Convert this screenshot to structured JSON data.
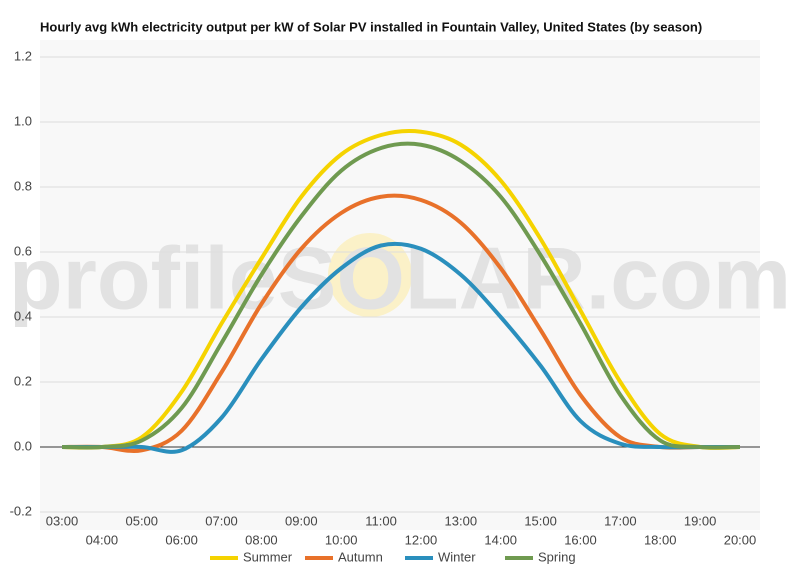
{
  "chart_data": {
    "type": "line",
    "title": "Hourly avg kWh electricity output per kW of Solar PV installed in Fountain Valley, United States (by season)",
    "watermark": "profileSOLAR.com",
    "categories": [
      "03:00",
      "04:00",
      "05:00",
      "06:00",
      "07:00",
      "08:00",
      "09:00",
      "10:00",
      "11:00",
      "12:00",
      "13:00",
      "14:00",
      "15:00",
      "16:00",
      "17:00",
      "18:00",
      "19:00",
      "20:00"
    ],
    "series": [
      {
        "name": "Summer",
        "color": "#f5d300",
        "values": [
          0,
          0,
          0.03,
          0.17,
          0.38,
          0.58,
          0.77,
          0.9,
          0.96,
          0.97,
          0.93,
          0.82,
          0.64,
          0.42,
          0.2,
          0.04,
          0,
          0
        ]
      },
      {
        "name": "Autumn",
        "color": "#e8712a",
        "values": [
          0,
          0,
          -0.01,
          0.05,
          0.23,
          0.44,
          0.61,
          0.72,
          0.77,
          0.76,
          0.69,
          0.55,
          0.36,
          0.16,
          0.03,
          0,
          0,
          0
        ]
      },
      {
        "name": "Winter",
        "color": "#2a8fbd",
        "values": [
          0,
          0,
          0,
          -0.01,
          0.09,
          0.27,
          0.43,
          0.55,
          0.62,
          0.61,
          0.53,
          0.4,
          0.25,
          0.08,
          0.01,
          0,
          0,
          0
        ]
      },
      {
        "name": "Spring",
        "color": "#6f9a50",
        "values": [
          0,
          0,
          0.02,
          0.12,
          0.32,
          0.53,
          0.71,
          0.85,
          0.92,
          0.93,
          0.88,
          0.77,
          0.59,
          0.38,
          0.16,
          0.02,
          0,
          0
        ]
      }
    ],
    "ylim": [
      -0.2,
      1.2
    ],
    "yticks": [
      -0.2,
      {
        "value": 0,
        "label": "0.0"
      },
      0.2,
      0.4,
      0.6,
      0.8,
      {
        "value": 1,
        "label": "1.0"
      },
      1.2
    ],
    "grid": true,
    "legend": "bottom"
  }
}
